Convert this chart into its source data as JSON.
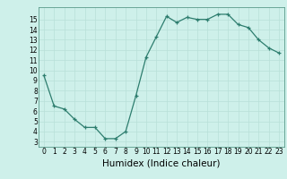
{
  "x": [
    0,
    1,
    2,
    3,
    4,
    5,
    6,
    7,
    8,
    9,
    10,
    11,
    12,
    13,
    14,
    15,
    16,
    17,
    18,
    19,
    20,
    21,
    22,
    23
  ],
  "y": [
    9.5,
    6.5,
    6.2,
    5.2,
    4.4,
    4.4,
    3.3,
    3.3,
    4.0,
    7.5,
    11.3,
    13.3,
    15.3,
    14.7,
    15.2,
    15.0,
    15.0,
    15.5,
    15.5,
    14.5,
    14.2,
    13.0,
    12.2,
    11.7
  ],
  "xlim": [
    -0.5,
    23.5
  ],
  "ylim": [
    2.5,
    16.2
  ],
  "yticks": [
    3,
    4,
    5,
    6,
    7,
    8,
    9,
    10,
    11,
    12,
    13,
    14,
    15
  ],
  "xticks": [
    0,
    1,
    2,
    3,
    4,
    5,
    6,
    7,
    8,
    9,
    10,
    11,
    12,
    13,
    14,
    15,
    16,
    17,
    18,
    19,
    20,
    21,
    22,
    23
  ],
  "xlabel": "Humidex (Indice chaleur)",
  "line_color": "#2d7d6e",
  "bg_color": "#cef0ea",
  "grid_color": "#b8e0d8",
  "tick_label_size": 5.5,
  "xlabel_size": 7.5
}
